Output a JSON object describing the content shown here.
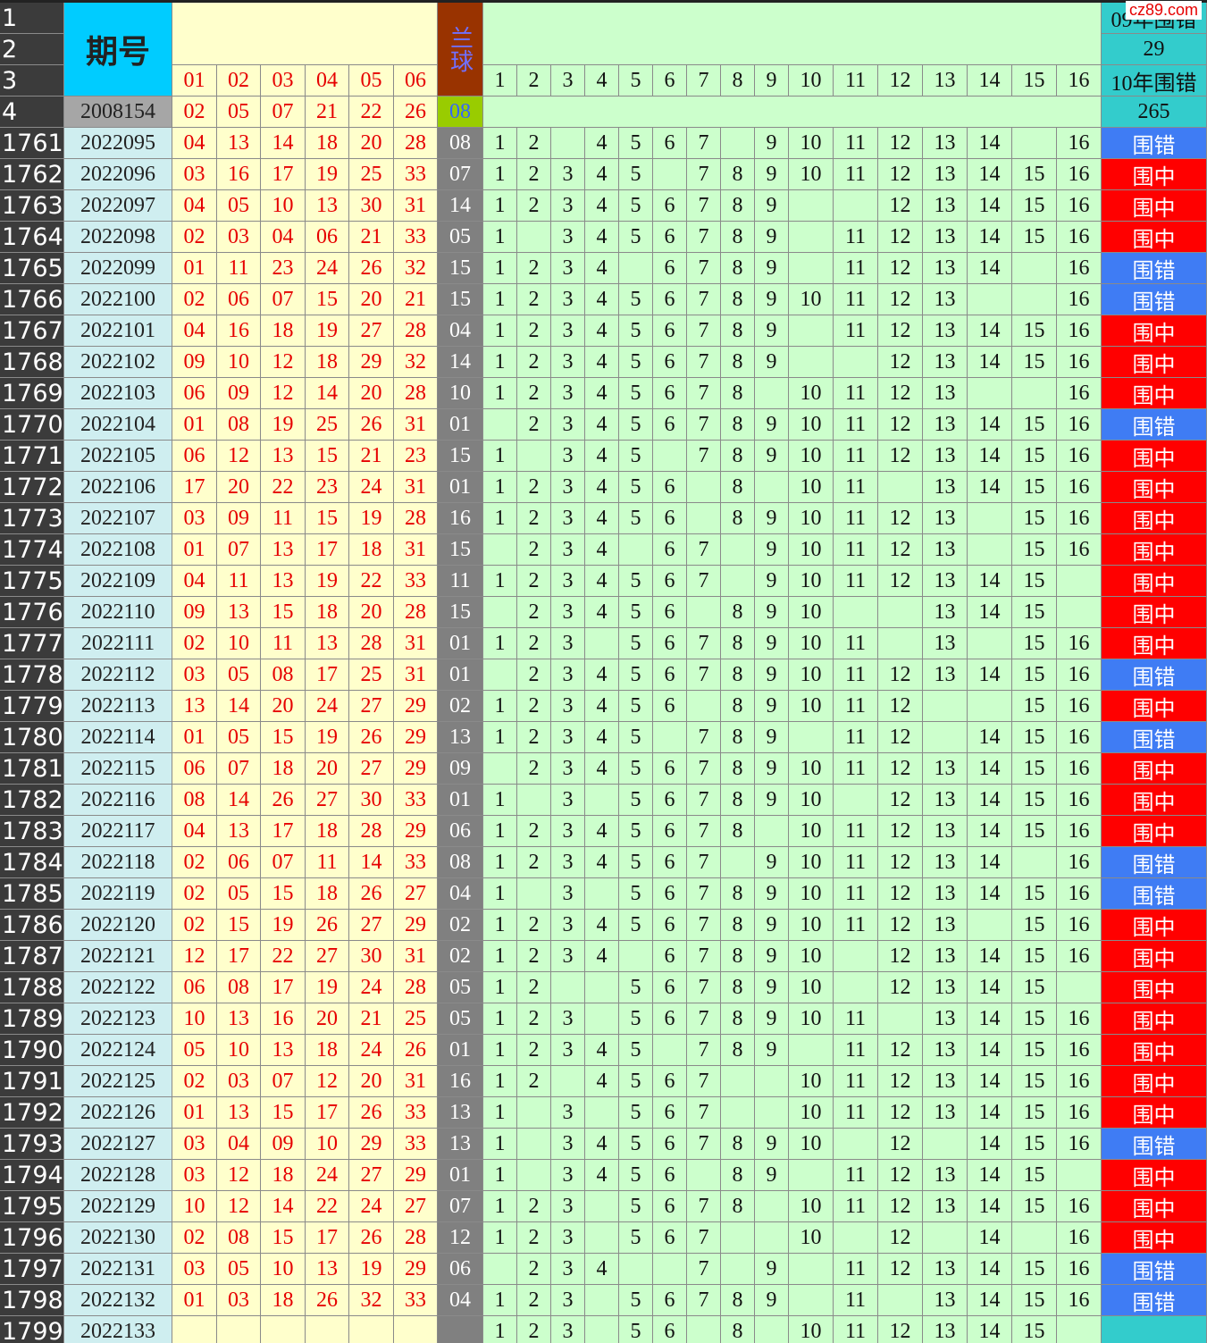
{
  "header": {
    "row_nums": [
      1,
      2,
      3,
      4
    ],
    "period_label": "期号",
    "blue_label": "兰球",
    "red_cols": [
      "01",
      "02",
      "03",
      "04",
      "05",
      "06"
    ],
    "green_cols": [
      1,
      2,
      3,
      4,
      5,
      6,
      7,
      8,
      9,
      10,
      11,
      12,
      13,
      14,
      15,
      16
    ],
    "stat1_label": "09年围错",
    "stat1_value": 29,
    "stat2_label": "10年围错",
    "stat2_value": 265
  },
  "ref_row": {
    "period": "2008154",
    "reds": [
      "02",
      "05",
      "07",
      "21",
      "22",
      "26"
    ],
    "blue": "08"
  },
  "result_colors": {
    "围中": "#ff0000",
    "围错": "#3f7cf4"
  },
  "watermark": "cz89.com",
  "rows": [
    {
      "n": 1761,
      "period": "2022095",
      "reds": [
        "04",
        "13",
        "14",
        "18",
        "20",
        "28"
      ],
      "blue": "08",
      "hits": [
        1,
        2,
        4,
        5,
        6,
        7,
        9,
        10,
        11,
        12,
        13,
        14,
        16
      ],
      "result": "围错"
    },
    {
      "n": 1762,
      "period": "2022096",
      "reds": [
        "03",
        "16",
        "17",
        "19",
        "25",
        "33"
      ],
      "blue": "07",
      "hits": [
        1,
        2,
        3,
        4,
        5,
        7,
        8,
        9,
        10,
        11,
        12,
        13,
        14,
        15,
        16
      ],
      "result": "围中"
    },
    {
      "n": 1763,
      "period": "2022097",
      "reds": [
        "04",
        "05",
        "10",
        "13",
        "30",
        "31"
      ],
      "blue": "14",
      "hits": [
        1,
        2,
        3,
        4,
        5,
        6,
        7,
        8,
        9,
        12,
        13,
        14,
        15,
        16
      ],
      "result": "围中"
    },
    {
      "n": 1764,
      "period": "2022098",
      "reds": [
        "02",
        "03",
        "04",
        "06",
        "21",
        "33"
      ],
      "blue": "05",
      "hits": [
        1,
        3,
        4,
        5,
        6,
        7,
        8,
        9,
        11,
        12,
        13,
        14,
        15,
        16
      ],
      "result": "围中"
    },
    {
      "n": 1765,
      "period": "2022099",
      "reds": [
        "01",
        "11",
        "23",
        "24",
        "26",
        "32"
      ],
      "blue": "15",
      "hits": [
        1,
        2,
        3,
        4,
        6,
        7,
        8,
        9,
        11,
        12,
        13,
        14,
        16
      ],
      "result": "围错"
    },
    {
      "n": 1766,
      "period": "2022100",
      "reds": [
        "02",
        "06",
        "07",
        "15",
        "20",
        "21"
      ],
      "blue": "15",
      "hits": [
        1,
        2,
        3,
        4,
        5,
        6,
        7,
        8,
        9,
        10,
        11,
        12,
        13,
        16
      ],
      "result": "围错"
    },
    {
      "n": 1767,
      "period": "2022101",
      "reds": [
        "04",
        "16",
        "18",
        "19",
        "27",
        "28"
      ],
      "blue": "04",
      "hits": [
        1,
        2,
        3,
        4,
        5,
        6,
        7,
        8,
        9,
        11,
        12,
        13,
        14,
        15,
        16
      ],
      "result": "围中"
    },
    {
      "n": 1768,
      "period": "2022102",
      "reds": [
        "09",
        "10",
        "12",
        "18",
        "29",
        "32"
      ],
      "blue": "14",
      "hits": [
        1,
        2,
        3,
        4,
        5,
        6,
        7,
        8,
        9,
        12,
        13,
        14,
        15,
        16
      ],
      "result": "围中"
    },
    {
      "n": 1769,
      "period": "2022103",
      "reds": [
        "06",
        "09",
        "12",
        "14",
        "20",
        "28"
      ],
      "blue": "10",
      "hits": [
        1,
        2,
        3,
        4,
        5,
        6,
        7,
        8,
        10,
        11,
        12,
        13,
        16
      ],
      "result": "围中"
    },
    {
      "n": 1770,
      "period": "2022104",
      "reds": [
        "01",
        "08",
        "19",
        "25",
        "26",
        "31"
      ],
      "blue": "01",
      "hits": [
        2,
        3,
        4,
        5,
        6,
        7,
        8,
        9,
        10,
        11,
        12,
        13,
        14,
        15,
        16
      ],
      "result": "围错"
    },
    {
      "n": 1771,
      "period": "2022105",
      "reds": [
        "06",
        "12",
        "13",
        "15",
        "21",
        "23"
      ],
      "blue": "15",
      "hits": [
        1,
        3,
        4,
        5,
        7,
        8,
        9,
        10,
        11,
        12,
        13,
        14,
        15,
        16
      ],
      "result": "围中"
    },
    {
      "n": 1772,
      "period": "2022106",
      "reds": [
        "17",
        "20",
        "22",
        "23",
        "24",
        "31"
      ],
      "blue": "01",
      "hits": [
        1,
        2,
        3,
        4,
        5,
        6,
        8,
        10,
        11,
        13,
        14,
        15,
        16
      ],
      "result": "围中"
    },
    {
      "n": 1773,
      "period": "2022107",
      "reds": [
        "03",
        "09",
        "11",
        "15",
        "19",
        "28"
      ],
      "blue": "16",
      "hits": [
        1,
        2,
        3,
        4,
        5,
        6,
        8,
        9,
        10,
        11,
        12,
        13,
        15,
        16
      ],
      "result": "围中"
    },
    {
      "n": 1774,
      "period": "2022108",
      "reds": [
        "01",
        "07",
        "13",
        "17",
        "18",
        "31"
      ],
      "blue": "15",
      "hits": [
        2,
        3,
        4,
        6,
        7,
        9,
        10,
        11,
        12,
        13,
        15,
        16
      ],
      "result": "围中"
    },
    {
      "n": 1775,
      "period": "2022109",
      "reds": [
        "04",
        "11",
        "13",
        "19",
        "22",
        "33"
      ],
      "blue": "11",
      "hits": [
        1,
        2,
        3,
        4,
        5,
        6,
        7,
        9,
        10,
        11,
        12,
        13,
        14,
        15
      ],
      "result": "围中"
    },
    {
      "n": 1776,
      "period": "2022110",
      "reds": [
        "09",
        "13",
        "15",
        "18",
        "20",
        "28"
      ],
      "blue": "15",
      "hits": [
        2,
        3,
        4,
        5,
        6,
        8,
        9,
        10,
        13,
        14,
        15
      ],
      "result": "围中"
    },
    {
      "n": 1777,
      "period": "2022111",
      "reds": [
        "02",
        "10",
        "11",
        "13",
        "28",
        "31"
      ],
      "blue": "01",
      "hits": [
        1,
        2,
        3,
        5,
        6,
        7,
        8,
        9,
        10,
        11,
        13,
        15,
        16
      ],
      "result": "围中"
    },
    {
      "n": 1778,
      "period": "2022112",
      "reds": [
        "03",
        "05",
        "08",
        "17",
        "25",
        "31"
      ],
      "blue": "01",
      "hits": [
        2,
        3,
        4,
        5,
        6,
        7,
        8,
        9,
        10,
        11,
        12,
        13,
        14,
        15,
        16
      ],
      "result": "围错"
    },
    {
      "n": 1779,
      "period": "2022113",
      "reds": [
        "13",
        "14",
        "20",
        "24",
        "27",
        "29"
      ],
      "blue": "02",
      "hits": [
        1,
        2,
        3,
        4,
        5,
        6,
        8,
        9,
        10,
        11,
        12,
        15,
        16
      ],
      "result": "围中"
    },
    {
      "n": 1780,
      "period": "2022114",
      "reds": [
        "01",
        "05",
        "15",
        "19",
        "26",
        "29"
      ],
      "blue": "13",
      "hits": [
        1,
        2,
        3,
        4,
        5,
        7,
        8,
        9,
        11,
        12,
        14,
        15,
        16
      ],
      "result": "围错"
    },
    {
      "n": 1781,
      "period": "2022115",
      "reds": [
        "06",
        "07",
        "18",
        "20",
        "27",
        "29"
      ],
      "blue": "09",
      "hits": [
        2,
        3,
        4,
        5,
        6,
        7,
        8,
        9,
        10,
        11,
        12,
        13,
        14,
        15,
        16
      ],
      "result": "围中"
    },
    {
      "n": 1782,
      "period": "2022116",
      "reds": [
        "08",
        "14",
        "26",
        "27",
        "30",
        "33"
      ],
      "blue": "01",
      "hits": [
        1,
        3,
        5,
        6,
        7,
        8,
        9,
        10,
        12,
        13,
        14,
        15,
        16
      ],
      "result": "围中"
    },
    {
      "n": 1783,
      "period": "2022117",
      "reds": [
        "04",
        "13",
        "17",
        "18",
        "28",
        "29"
      ],
      "blue": "06",
      "hits": [
        1,
        2,
        3,
        4,
        5,
        6,
        7,
        8,
        10,
        11,
        12,
        13,
        14,
        15,
        16
      ],
      "result": "围中"
    },
    {
      "n": 1784,
      "period": "2022118",
      "reds": [
        "02",
        "06",
        "07",
        "11",
        "14",
        "33"
      ],
      "blue": "08",
      "hits": [
        1,
        2,
        3,
        4,
        5,
        6,
        7,
        9,
        10,
        11,
        12,
        13,
        14,
        16
      ],
      "result": "围错"
    },
    {
      "n": 1785,
      "period": "2022119",
      "reds": [
        "02",
        "05",
        "15",
        "18",
        "26",
        "27"
      ],
      "blue": "04",
      "hits": [
        1,
        3,
        5,
        6,
        7,
        8,
        9,
        10,
        11,
        12,
        13,
        14,
        15,
        16
      ],
      "result": "围错"
    },
    {
      "n": 1786,
      "period": "2022120",
      "reds": [
        "02",
        "15",
        "19",
        "26",
        "27",
        "29"
      ],
      "blue": "02",
      "hits": [
        1,
        2,
        3,
        4,
        5,
        6,
        7,
        8,
        9,
        10,
        11,
        12,
        13,
        15,
        16
      ],
      "result": "围中"
    },
    {
      "n": 1787,
      "period": "2022121",
      "reds": [
        "12",
        "17",
        "22",
        "27",
        "30",
        "31"
      ],
      "blue": "02",
      "hits": [
        1,
        2,
        3,
        4,
        6,
        7,
        8,
        9,
        10,
        12,
        13,
        14,
        15,
        16
      ],
      "result": "围中"
    },
    {
      "n": 1788,
      "period": "2022122",
      "reds": [
        "06",
        "08",
        "17",
        "19",
        "24",
        "28"
      ],
      "blue": "05",
      "hits": [
        1,
        2,
        5,
        6,
        7,
        8,
        9,
        10,
        12,
        13,
        14,
        15
      ],
      "result": "围中"
    },
    {
      "n": 1789,
      "period": "2022123",
      "reds": [
        "10",
        "13",
        "16",
        "20",
        "21",
        "25"
      ],
      "blue": "05",
      "hits": [
        1,
        2,
        3,
        5,
        6,
        7,
        8,
        9,
        10,
        11,
        13,
        14,
        15,
        16
      ],
      "result": "围中"
    },
    {
      "n": 1790,
      "period": "2022124",
      "reds": [
        "05",
        "10",
        "13",
        "18",
        "24",
        "26"
      ],
      "blue": "01",
      "hits": [
        1,
        2,
        3,
        4,
        5,
        7,
        8,
        9,
        11,
        12,
        13,
        14,
        15,
        16
      ],
      "result": "围中"
    },
    {
      "n": 1791,
      "period": "2022125",
      "reds": [
        "02",
        "03",
        "07",
        "12",
        "20",
        "31"
      ],
      "blue": "16",
      "hits": [
        1,
        2,
        4,
        5,
        6,
        7,
        10,
        11,
        12,
        13,
        14,
        15,
        16
      ],
      "result": "围中"
    },
    {
      "n": 1792,
      "period": "2022126",
      "reds": [
        "01",
        "13",
        "15",
        "17",
        "26",
        "33"
      ],
      "blue": "13",
      "hits": [
        1,
        3,
        5,
        6,
        7,
        10,
        11,
        12,
        13,
        14,
        15,
        16
      ],
      "result": "围中"
    },
    {
      "n": 1793,
      "period": "2022127",
      "reds": [
        "03",
        "04",
        "09",
        "10",
        "29",
        "33"
      ],
      "blue": "13",
      "hits": [
        1,
        3,
        4,
        5,
        6,
        7,
        8,
        9,
        10,
        12,
        14,
        15,
        16
      ],
      "result": "围错"
    },
    {
      "n": 1794,
      "period": "2022128",
      "reds": [
        "03",
        "12",
        "18",
        "24",
        "27",
        "29"
      ],
      "blue": "01",
      "hits": [
        1,
        3,
        4,
        5,
        6,
        8,
        9,
        11,
        12,
        13,
        14,
        15
      ],
      "result": "围中"
    },
    {
      "n": 1795,
      "period": "2022129",
      "reds": [
        "10",
        "12",
        "14",
        "22",
        "24",
        "27"
      ],
      "blue": "07",
      "hits": [
        1,
        2,
        3,
        5,
        6,
        7,
        8,
        10,
        11,
        12,
        13,
        14,
        15,
        16
      ],
      "result": "围中"
    },
    {
      "n": 1796,
      "period": "2022130",
      "reds": [
        "02",
        "08",
        "15",
        "17",
        "26",
        "28"
      ],
      "blue": "12",
      "hits": [
        1,
        2,
        3,
        5,
        6,
        7,
        10,
        12,
        14,
        16
      ],
      "result": "围中"
    },
    {
      "n": 1797,
      "period": "2022131",
      "reds": [
        "03",
        "05",
        "10",
        "13",
        "19",
        "29"
      ],
      "blue": "06",
      "hits": [
        2,
        3,
        4,
        7,
        9,
        11,
        12,
        13,
        14,
        15,
        16
      ],
      "result": "围错"
    },
    {
      "n": 1798,
      "period": "2022132",
      "reds": [
        "01",
        "03",
        "18",
        "26",
        "32",
        "33"
      ],
      "blue": "04",
      "hits": [
        1,
        2,
        3,
        5,
        6,
        7,
        8,
        9,
        11,
        13,
        14,
        15,
        16
      ],
      "result": "围错"
    },
    {
      "n": 1799,
      "period": "2022133",
      "hits": [
        1,
        2,
        3,
        5,
        6,
        8,
        10,
        11,
        12,
        13,
        14,
        15
      ]
    }
  ]
}
